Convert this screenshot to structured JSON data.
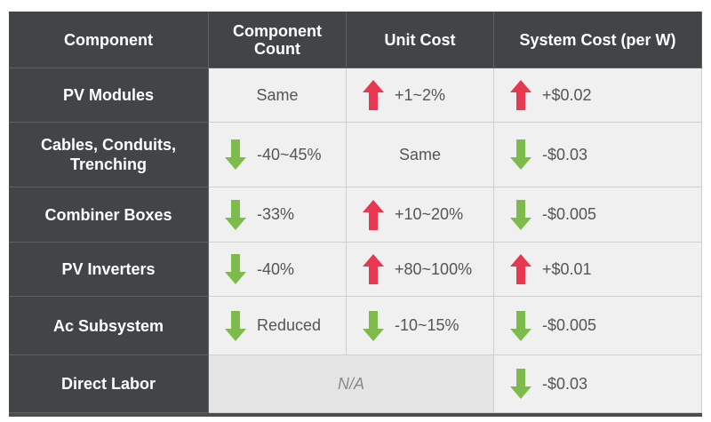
{
  "colors": {
    "header_bg": "#424547",
    "cell_bg": "#f0f0f0",
    "up": "#e8384f",
    "down": "#7dbb4a"
  },
  "headers": [
    "Component",
    "Component Count",
    "Unit Cost",
    "System Cost (per W)"
  ],
  "rows": [
    {
      "component": "PV Modules",
      "count": {
        "dir": "",
        "text": "Same"
      },
      "unit": {
        "dir": "up",
        "text": "+1~2%"
      },
      "system": {
        "dir": "up",
        "text": "+$0.02"
      }
    },
    {
      "component": "Cables, Conduits, Trenching",
      "count": {
        "dir": "down",
        "text": "-40~45%"
      },
      "unit": {
        "dir": "",
        "text": "Same"
      },
      "system": {
        "dir": "down",
        "text": "-$0.03"
      }
    },
    {
      "component": "Combiner Boxes",
      "count": {
        "dir": "down",
        "text": "-33%"
      },
      "unit": {
        "dir": "up",
        "text": "+10~20%"
      },
      "system": {
        "dir": "down",
        "text": "-$0.005"
      }
    },
    {
      "component": "PV Inverters",
      "count": {
        "dir": "down",
        "text": "-40%"
      },
      "unit": {
        "dir": "up",
        "text": "+80~100%"
      },
      "system": {
        "dir": "up",
        "text": "+$0.01"
      }
    },
    {
      "component": "Ac Subsystem",
      "count": {
        "dir": "down",
        "text": "Reduced"
      },
      "unit": {
        "dir": "down",
        "text": "-10~15%"
      },
      "system": {
        "dir": "down",
        "text": "-$0.005"
      }
    },
    {
      "component": "Direct Labor",
      "merged_text": "N/A",
      "system": {
        "dir": "down",
        "text": "-$0.03"
      }
    }
  ]
}
